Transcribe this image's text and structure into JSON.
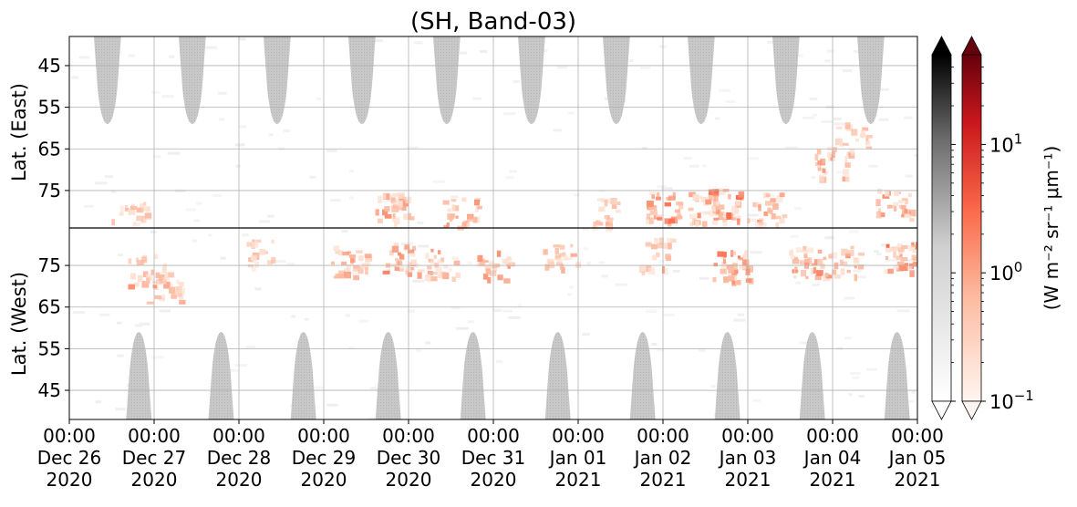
{
  "chart_data": {
    "type": "heatmap",
    "title": "(SH, Band-03)",
    "panels": [
      {
        "name": "East",
        "ylabel": "Lat. (East)",
        "yticks": [
          45,
          55,
          65,
          75
        ]
      },
      {
        "name": "West",
        "ylabel": "Lat. (West)",
        "yticks": [
          75,
          65,
          55,
          45
        ]
      }
    ],
    "x_range": [
      "2020-12-26T00:00",
      "2021-01-05T00:00"
    ],
    "xticks": [
      {
        "time": "00:00",
        "date": "Dec 26",
        "year": "2020"
      },
      {
        "time": "00:00",
        "date": "Dec 27",
        "year": "2020"
      },
      {
        "time": "00:00",
        "date": "Dec 28",
        "year": "2020"
      },
      {
        "time": "00:00",
        "date": "Dec 29",
        "year": "2020"
      },
      {
        "time": "00:00",
        "date": "Dec 30",
        "year": "2020"
      },
      {
        "time": "00:00",
        "date": "Dec 31",
        "year": "2020"
      },
      {
        "time": "00:00",
        "date": "Jan 01",
        "year": "2021"
      },
      {
        "time": "00:00",
        "date": "Jan 02",
        "year": "2021"
      },
      {
        "time": "00:00",
        "date": "Jan 03",
        "year": "2021"
      },
      {
        "time": "00:00",
        "date": "Jan 04",
        "year": "2021"
      },
      {
        "time": "00:00",
        "date": "Jan 05",
        "year": "2021"
      }
    ],
    "gray_daytime_regions": {
      "east": [
        {
          "center_day": 0.45,
          "half_width_day": 0.32,
          "min_lat": 59
        },
        {
          "center_day": 1.45,
          "half_width_day": 0.32,
          "min_lat": 59
        },
        {
          "center_day": 2.45,
          "half_width_day": 0.32,
          "min_lat": 59
        },
        {
          "center_day": 3.45,
          "half_width_day": 0.32,
          "min_lat": 59
        },
        {
          "center_day": 4.45,
          "half_width_day": 0.32,
          "min_lat": 59
        },
        {
          "center_day": 5.45,
          "half_width_day": 0.32,
          "min_lat": 59
        },
        {
          "center_day": 6.45,
          "half_width_day": 0.32,
          "min_lat": 59
        },
        {
          "center_day": 7.45,
          "half_width_day": 0.32,
          "min_lat": 59
        },
        {
          "center_day": 8.45,
          "half_width_day": 0.32,
          "min_lat": 59
        },
        {
          "center_day": 9.45,
          "half_width_day": 0.32,
          "min_lat": 59
        }
      ],
      "west": [
        {
          "center_day": 0.82,
          "half_width_day": 0.3,
          "min_lat": 59
        },
        {
          "center_day": 1.79,
          "half_width_day": 0.3,
          "min_lat": 59
        },
        {
          "center_day": 2.76,
          "half_width_day": 0.3,
          "min_lat": 59
        },
        {
          "center_day": 3.76,
          "half_width_day": 0.3,
          "min_lat": 59
        },
        {
          "center_day": 4.76,
          "half_width_day": 0.3,
          "min_lat": 59
        },
        {
          "center_day": 5.76,
          "half_width_day": 0.3,
          "min_lat": 59
        },
        {
          "center_day": 6.76,
          "half_width_day": 0.3,
          "min_lat": 59
        },
        {
          "center_day": 7.76,
          "half_width_day": 0.3,
          "min_lat": 59
        },
        {
          "center_day": 8.76,
          "half_width_day": 0.3,
          "min_lat": 59
        },
        {
          "center_day": 9.76,
          "half_width_day": 0.3,
          "min_lat": 59
        }
      ]
    },
    "red_emission_clusters": [
      {
        "day": 0.7,
        "lat": 80,
        "panel": "East",
        "intensity": 0.4
      },
      {
        "day": 0.9,
        "lat": 74,
        "panel": "West",
        "intensity": 0.5
      },
      {
        "day": 1.1,
        "lat": 70,
        "panel": "West",
        "intensity": 0.4
      },
      {
        "day": 2.3,
        "lat": 78,
        "panel": "West",
        "intensity": 0.3
      },
      {
        "day": 3.3,
        "lat": 76,
        "panel": "West",
        "intensity": 0.6
      },
      {
        "day": 3.8,
        "lat": 79,
        "panel": "East",
        "intensity": 0.8
      },
      {
        "day": 3.9,
        "lat": 77,
        "panel": "West",
        "intensity": 0.7
      },
      {
        "day": 4.4,
        "lat": 76,
        "panel": "West",
        "intensity": 0.5
      },
      {
        "day": 4.6,
        "lat": 80,
        "panel": "East",
        "intensity": 0.5
      },
      {
        "day": 5.0,
        "lat": 75,
        "panel": "West",
        "intensity": 0.6
      },
      {
        "day": 5.8,
        "lat": 77,
        "panel": "West",
        "intensity": 0.4
      },
      {
        "day": 6.3,
        "lat": 80,
        "panel": "East",
        "intensity": 0.4
      },
      {
        "day": 6.9,
        "lat": 78,
        "panel": "West",
        "intensity": 0.4
      },
      {
        "day": 7.0,
        "lat": 79,
        "panel": "East",
        "intensity": 0.8
      },
      {
        "day": 7.5,
        "lat": 79,
        "panel": "East",
        "intensity": 0.5
      },
      {
        "day": 7.7,
        "lat": 78,
        "panel": "East",
        "intensity": 0.9
      },
      {
        "day": 7.8,
        "lat": 75,
        "panel": "West",
        "intensity": 0.9
      },
      {
        "day": 8.2,
        "lat": 79,
        "panel": "East",
        "intensity": 0.5
      },
      {
        "day": 8.7,
        "lat": 76,
        "panel": "West",
        "intensity": 0.8
      },
      {
        "day": 9.0,
        "lat": 68,
        "panel": "East",
        "intensity": 0.5
      },
      {
        "day": 9.2,
        "lat": 62,
        "panel": "East",
        "intensity": 0.3
      },
      {
        "day": 9.1,
        "lat": 76,
        "panel": "West",
        "intensity": 0.5
      },
      {
        "day": 9.7,
        "lat": 78,
        "panel": "East",
        "intensity": 0.6
      },
      {
        "day": 9.8,
        "lat": 77,
        "panel": "West",
        "intensity": 0.9
      }
    ],
    "colorbar": {
      "label": "(W m⁻² sr⁻¹ μm⁻¹)",
      "scale": "log",
      "range": [
        0.1,
        50
      ],
      "ticks": [
        {
          "base": "10",
          "exp": "1",
          "value": 10
        },
        {
          "base": "10",
          "exp": "0",
          "value": 1
        },
        {
          "base": "10",
          "exp": "−1",
          "value": 0.1
        }
      ],
      "colormaps": [
        "Greys",
        "Reds"
      ],
      "extend": "both"
    },
    "grid": true
  }
}
